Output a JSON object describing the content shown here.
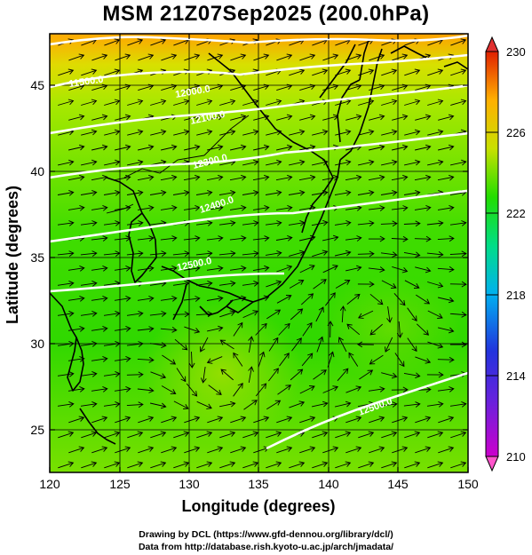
{
  "title": "MSM 21Z07Sep2025 (200.0hPa)",
  "x_axis": {
    "label": "Longitude (degrees)",
    "range": [
      120,
      150
    ],
    "ticks": [
      "120",
      "125",
      "130",
      "135",
      "140",
      "145",
      "150"
    ]
  },
  "y_axis": {
    "label": "Latitude  (degrees)",
    "range": [
      22.5,
      47.6
    ],
    "ticks": [
      "25",
      "30",
      "35",
      "40",
      "45"
    ]
  },
  "colorbar": {
    "range": [
      210,
      230
    ],
    "ticks": [
      "210",
      "214",
      "218",
      "222",
      "226",
      "230"
    ],
    "colors": [
      "#cc00cc",
      "#2233dd",
      "#00b0f0",
      "#00dd88",
      "#22dd00",
      "#c8e000",
      "#ffb000",
      "#ff5500",
      "#e02000"
    ]
  },
  "contour_labels": [
    "11500.0",
    "12000.0",
    "12100.0",
    "12300.0",
    "12400.0",
    "12500.0",
    "12500.0"
  ],
  "credits": {
    "line1": "Drawing by DCL (https://www.gfd-dennou.org/library/dcl/)",
    "line2": "Data from http://database.rish.kyoto-u.ac.jp/arch/jmadata/"
  }
}
